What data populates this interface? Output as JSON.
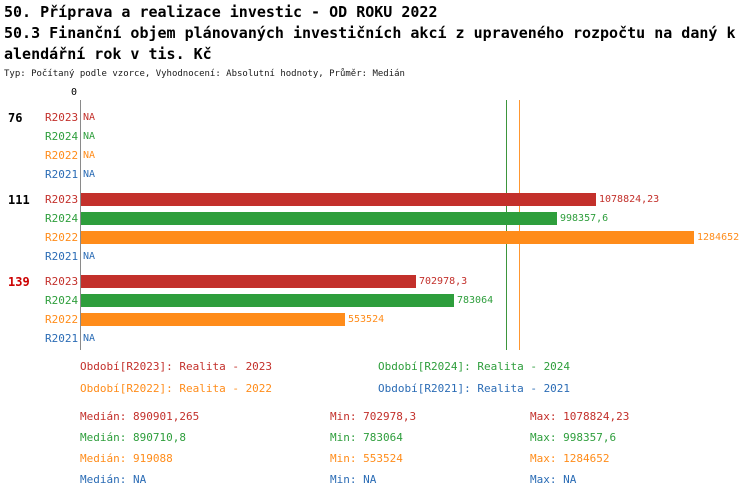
{
  "header": {
    "line1": "50. Příprava a realizace investic - OD ROKU 2022",
    "line2": "50.3 Finanční objem plánovaných investičních akcí z upraveného rozpočtu na daný k",
    "line3": "alendářní rok v tis. Kč",
    "subtitle": "Typ: Počítaný podle vzorce, Vyhodnocení: Absolutní hodnoty, Průměr: Medián"
  },
  "colors": {
    "r2023": "#C3302B",
    "r2024": "#2E9E3C",
    "r2022": "#FF8C1A",
    "r2021": "#2B6CB5",
    "axis": "#8A8A8A"
  },
  "chart_data": {
    "type": "bar",
    "orientation": "horizontal",
    "title": "50.3 Finanční objem plánovaných investičních akcí z upraveného rozpočtu na daný kalendářní rok v tis. Kč",
    "x_axis": {
      "zero_label": "0",
      "xmin": 0,
      "xmax": 1300000,
      "grid": false
    },
    "series": [
      "R2023",
      "R2024",
      "R2022",
      "R2021"
    ],
    "groups": [
      {
        "label": "76",
        "label_color": "#000000",
        "rows": [
          {
            "series": "R2023",
            "value": null,
            "display": "NA"
          },
          {
            "series": "R2024",
            "value": null,
            "display": "NA"
          },
          {
            "series": "R2022",
            "value": null,
            "display": "NA"
          },
          {
            "series": "R2021",
            "value": null,
            "display": "NA"
          }
        ]
      },
      {
        "label": "111",
        "label_color": "#000000",
        "rows": [
          {
            "series": "R2023",
            "value": 1078824.23,
            "display": "1078824,23"
          },
          {
            "series": "R2024",
            "value": 998357.6,
            "display": "998357,6"
          },
          {
            "series": "R2022",
            "value": 1284652,
            "display": "1284652"
          },
          {
            "series": "R2021",
            "value": null,
            "display": "NA"
          }
        ]
      },
      {
        "label": "139",
        "label_color": "#CC0000",
        "rows": [
          {
            "series": "R2023",
            "value": 702978.3,
            "display": "702978,3"
          },
          {
            "series": "R2024",
            "value": 783064,
            "display": "783064"
          },
          {
            "series": "R2022",
            "value": 553524,
            "display": "553524"
          },
          {
            "series": "R2021",
            "value": null,
            "display": "NA"
          }
        ]
      }
    ],
    "median_lines": [
      {
        "series": "R2023",
        "value": 890901.265
      },
      {
        "series": "R2024",
        "value": 890710.8
      },
      {
        "series": "R2022",
        "value": 919088
      }
    ]
  },
  "legend": [
    {
      "series": "R2023",
      "label": "Období[R2023]: Realita - 2023"
    },
    {
      "series": "R2024",
      "label": "Období[R2024]: Realita - 2024"
    },
    {
      "series": "R2022",
      "label": "Období[R2022]: Realita - 2022"
    },
    {
      "series": "R2021",
      "label": "Období[R2021]: Realita - 2021"
    }
  ],
  "stats_labels": {
    "median": "Medián:",
    "min": "Min:",
    "max": "Max:"
  },
  "stats": [
    {
      "series": "R2023",
      "median": "890901,265",
      "min": "702978,3",
      "max": "1078824,23"
    },
    {
      "series": "R2024",
      "median": "890710,8",
      "min": "783064",
      "max": "998357,6"
    },
    {
      "series": "R2022",
      "median": "919088",
      "min": "553524",
      "max": "1284652"
    },
    {
      "series": "R2021",
      "median": "NA",
      "min": "NA",
      "max": "NA"
    }
  ]
}
